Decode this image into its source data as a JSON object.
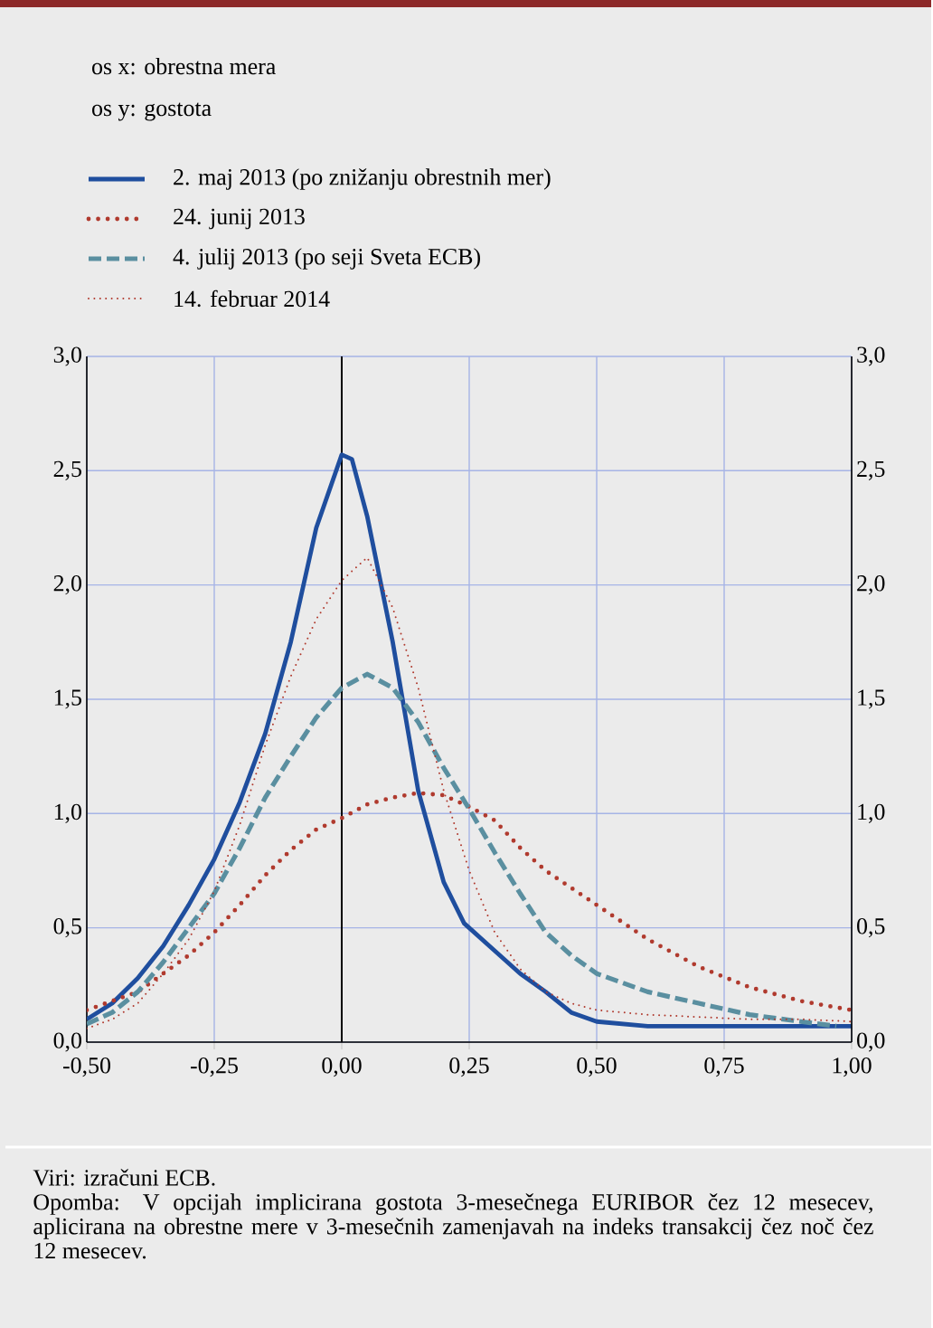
{
  "chart_data": {
    "type": "line",
    "xlim": [
      -0.5,
      1.0
    ],
    "xticks": [
      {
        "value": -0.5,
        "label": "-0,50"
      },
      {
        "value": -0.25,
        "label": "-0,25"
      },
      {
        "value": 0,
        "label": "0,00"
      },
      {
        "value": 0.25,
        "label": "0,25"
      },
      {
        "value": 0.5,
        "label": "0,50"
      },
      {
        "value": 0.75,
        "label": "0,75"
      },
      {
        "value": 1.0,
        "label": "1,00"
      }
    ],
    "ylim": [
      0,
      3.0
    ],
    "yticks": [
      {
        "value": 0,
        "label": "0,0"
      },
      {
        "value": 0.5,
        "label": "0,5"
      },
      {
        "value": 1.0,
        "label": "1,0"
      },
      {
        "value": 1.5,
        "label": "1,5"
      },
      {
        "value": 2.0,
        "label": "2,0"
      },
      {
        "value": 2.5,
        "label": "2,5"
      },
      {
        "value": 3.0,
        "label": "3,0"
      }
    ],
    "y2lim": [
      0,
      3.0
    ],
    "y2ticks": [
      {
        "value": 0,
        "label": "0,0"
      },
      {
        "value": 0.5,
        "label": "0,5"
      },
      {
        "value": 1.0,
        "label": "1,0"
      },
      {
        "value": 1.5,
        "label": "1,5"
      },
      {
        "value": 2.0,
        "label": "2,0"
      },
      {
        "value": 2.5,
        "label": "2,5"
      },
      {
        "value": 3.0,
        "label": "3,0"
      }
    ],
    "grid": true,
    "legend": "top",
    "ref_lines": [
      {
        "axis": "x",
        "value": 0,
        "color": "#000000"
      }
    ],
    "series": [
      {
        "name": "2. maj 2013 (po znižanju obrestnih mer)",
        "color": "#1f4e9e",
        "line_style": "solid",
        "x": [
          -0.5,
          -0.45,
          -0.4,
          -0.35,
          -0.3,
          -0.25,
          -0.2,
          -0.15,
          -0.1,
          -0.05,
          0,
          0.02,
          0.05,
          0.1,
          0.15,
          0.2,
          0.24,
          0.3,
          0.35,
          0.4,
          0.45,
          0.5,
          0.6,
          0.7,
          0.8,
          0.9,
          1.0
        ],
        "values": [
          0.1,
          0.17,
          0.28,
          0.42,
          0.6,
          0.8,
          1.05,
          1.35,
          1.75,
          2.25,
          2.57,
          2.55,
          2.3,
          1.75,
          1.1,
          0.7,
          0.52,
          0.4,
          0.3,
          0.22,
          0.13,
          0.09,
          0.07,
          0.07,
          0.07,
          0.07,
          0.07
        ]
      },
      {
        "name": "24. junij 2013",
        "color": "#b03a2e",
        "line_style": "dotted",
        "x": [
          -0.5,
          -0.4,
          -0.3,
          -0.25,
          -0.2,
          -0.15,
          -0.1,
          -0.05,
          0,
          0.05,
          0.1,
          0.15,
          0.2,
          0.25,
          0.3,
          0.35,
          0.4,
          0.5,
          0.6,
          0.7,
          0.8,
          0.9,
          1.0
        ],
        "values": [
          0.14,
          0.22,
          0.38,
          0.48,
          0.6,
          0.73,
          0.84,
          0.93,
          0.98,
          1.04,
          1.07,
          1.09,
          1.08,
          1.03,
          0.97,
          0.85,
          0.75,
          0.6,
          0.45,
          0.33,
          0.24,
          0.18,
          0.14
        ]
      },
      {
        "name": "4. julij 2013 (po seji Sveta ECB)",
        "color": "#5a8fa0",
        "line_style": "dashed",
        "x": [
          -0.5,
          -0.45,
          -0.4,
          -0.35,
          -0.3,
          -0.25,
          -0.2,
          -0.15,
          -0.1,
          -0.05,
          0,
          0.05,
          0.1,
          0.15,
          0.2,
          0.25,
          0.3,
          0.35,
          0.4,
          0.45,
          0.5,
          0.6,
          0.7,
          0.8,
          0.9,
          0.97
        ],
        "values": [
          0.08,
          0.13,
          0.22,
          0.35,
          0.5,
          0.65,
          0.85,
          1.07,
          1.25,
          1.42,
          1.55,
          1.61,
          1.55,
          1.4,
          1.2,
          1.02,
          0.83,
          0.65,
          0.48,
          0.38,
          0.3,
          0.22,
          0.17,
          0.12,
          0.09,
          0.07
        ]
      },
      {
        "name": "14. februar 2014",
        "color": "#b03a2e",
        "line_style": "dotted",
        "x": [
          -0.5,
          -0.45,
          -0.4,
          -0.35,
          -0.3,
          -0.25,
          -0.2,
          -0.15,
          -0.1,
          -0.05,
          0,
          0.05,
          0.1,
          0.15,
          0.2,
          0.25,
          0.3,
          0.35,
          0.4,
          0.45,
          0.5,
          0.6,
          0.7,
          0.8,
          0.9,
          1.0
        ],
        "values": [
          0.06,
          0.1,
          0.17,
          0.3,
          0.45,
          0.66,
          0.95,
          1.3,
          1.6,
          1.85,
          2.02,
          2.12,
          1.9,
          1.55,
          1.1,
          0.75,
          0.48,
          0.32,
          0.22,
          0.17,
          0.14,
          0.12,
          0.11,
          0.1,
          0.1,
          0.09
        ]
      }
    ],
    "annotations": [
      "os x: obrestna mera",
      "os y: gostota",
      "Viri: izračuni ECB.",
      "Opomba: V opcijah implicirana gostota 3-mesečnega EURIBOR čez 12 mesecev, aplicirana na obrestne mere v 3-mesečnih zamenjavah na indeks transakcij čez noč čez 12 mesecev."
    ]
  }
}
